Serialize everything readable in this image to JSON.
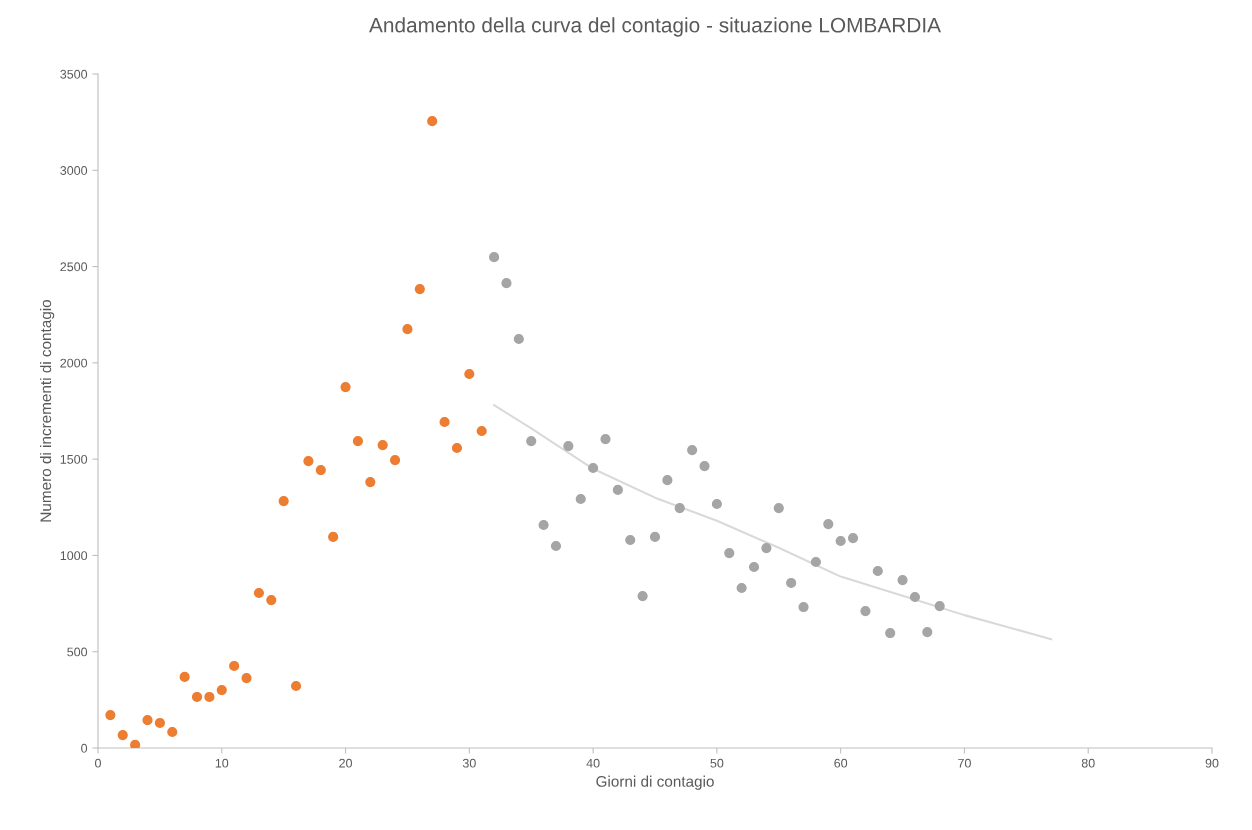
{
  "chart_data": {
    "type": "scatter",
    "title": "Andamento della curva del contagio - situazione LOMBARDIA",
    "xlabel": "Giorni di contagio",
    "ylabel": "Numero di incrementi di contagio",
    "xlim": [
      0,
      90
    ],
    "xticks": [
      0,
      10,
      20,
      30,
      40,
      50,
      60,
      70,
      80,
      90
    ],
    "ylim": [
      0,
      3500
    ],
    "yticks": [
      0,
      500,
      1000,
      1500,
      2000,
      2500,
      3000,
      3500
    ],
    "grid": false,
    "legend": false,
    "marker": "circle",
    "series": [
      {
        "color": "#ed7d31",
        "x": [
          1,
          2,
          3,
          4,
          5,
          6,
          7,
          8,
          9,
          10,
          11,
          12,
          13,
          14,
          15,
          16,
          17,
          18,
          19,
          20,
          21,
          22,
          23,
          24,
          25,
          26,
          27,
          28,
          29,
          30,
          31
        ],
        "values": [
          171,
          67,
          16,
          145,
          130,
          83,
          369,
          265,
          265,
          301,
          426,
          363,
          805,
          768,
          1282,
          322,
          1490,
          1443,
          1096,
          1874,
          1594,
          1381,
          1573,
          1495,
          2175,
          2383,
          3255,
          1693,
          1558,
          1942,
          1646
        ]
      },
      {
        "color": "#a5a5a5",
        "x": [
          32,
          33,
          34,
          35,
          36,
          37,
          38,
          39,
          40,
          41,
          42,
          43,
          44,
          45,
          46,
          47,
          48,
          49,
          50,
          51,
          52,
          53,
          54,
          55,
          56,
          57,
          58,
          59,
          60,
          61,
          62,
          63,
          64,
          65,
          66,
          67,
          68
        ],
        "values": [
          2549,
          2414,
          2124,
          1594,
          1158,
          1049,
          1568,
          1293,
          1454,
          1604,
          1340,
          1080,
          789,
          1096,
          1391,
          1246,
          1547,
          1464,
          1267,
          1012,
          831,
          940,
          1038,
          1246,
          857,
          732,
          966,
          1163,
          1075,
          1090,
          711,
          919,
          597,
          872,
          784,
          602,
          737
        ]
      },
      {
        "type": "line",
        "color": "#d9d9d9",
        "marker": "none",
        "x": [
          32,
          35,
          40,
          45,
          50,
          55,
          60,
          65,
          70,
          77
        ],
        "values": [
          1780,
          1660,
          1450,
          1300,
          1180,
          1040,
          890,
          790,
          690,
          565
        ]
      }
    ]
  }
}
